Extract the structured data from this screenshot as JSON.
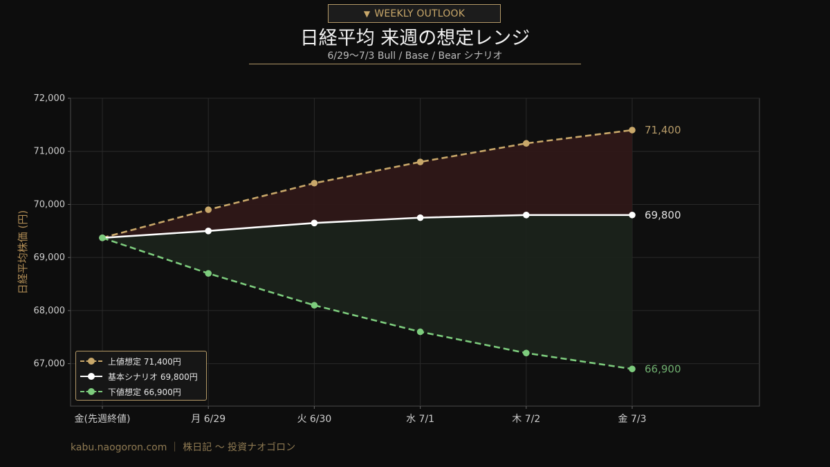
{
  "header": {
    "badge_icon": "triangle-down-icon",
    "badge_icon_glyph": "▼",
    "badge_text": "WEEKLY OUTLOOK",
    "title": "日経平均 来週の想定レンジ",
    "subtitle": "6/29〜7/3  Bull / Base / Bear シナリオ"
  },
  "footer": {
    "text": "kabu.naogoron.com ｜ 株日記 〜 投資ナオゴロン"
  },
  "colors": {
    "bull": "#c9a86a",
    "base": "#ffffff",
    "bear": "#7dcc7d",
    "bull_fill": "#2f1818",
    "bear_fill": "#1b231b",
    "grid": "#2a2a2a",
    "axis_text": "#cfcfcf",
    "ylabel": "#b08c55"
  },
  "chart_data": {
    "type": "line",
    "title": "日経平均 来週の想定レンジ",
    "ylabel": "日経平均株価 (円)",
    "xlabel": "",
    "categories": [
      "金(先週終値)",
      "月 6/29",
      "火 6/30",
      "水 7/1",
      "木 7/2",
      "金 7/3"
    ],
    "ylim": [
      66200,
      72000
    ],
    "yticks": [
      67000,
      68000,
      69000,
      70000,
      71000,
      72000
    ],
    "ytick_labels": [
      "67,000",
      "68,000",
      "69,000",
      "70,000",
      "71,000",
      "72,000"
    ],
    "grid": true,
    "legend_position": "bottom-left",
    "series": [
      {
        "key": "bull",
        "name": "上値想定 71,400円",
        "style": "dashed",
        "values": [
          69370,
          69900,
          70400,
          70800,
          71150,
          71400
        ],
        "end_label": "71,400"
      },
      {
        "key": "base",
        "name": "基本シナリオ 69,800円",
        "style": "solid",
        "values": [
          69370,
          69500,
          69650,
          69750,
          69800,
          69800
        ],
        "end_label": "69,800"
      },
      {
        "key": "bear",
        "name": "下値想定 66,900円",
        "style": "dashed",
        "values": [
          69370,
          68700,
          68100,
          67600,
          67200,
          66900
        ],
        "end_label": "66,900"
      }
    ]
  }
}
